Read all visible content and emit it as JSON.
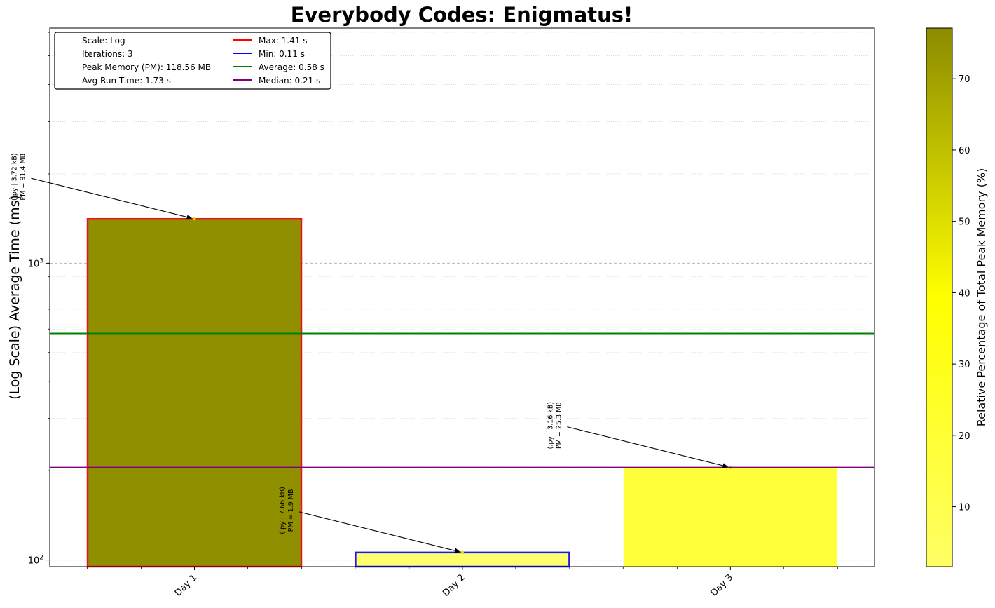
{
  "chart_data": {
    "type": "bar",
    "title": "Everybody Codes: Enigmatus!",
    "xlabel": "",
    "ylabel": "(Log Scale) Average Time (ms)",
    "yscale": "log",
    "ylim": [
      95,
      6200
    ],
    "grid": true,
    "categories": [
      "Day 1",
      "Day 2",
      "Day 3"
    ],
    "values": [
      1410,
      106,
      205
    ],
    "bar_colors": [
      "#8f8f00",
      "#ffff6e",
      "#ffff3a"
    ],
    "bar_edge_colors": [
      "#e8141e",
      "#1a1aee",
      null
    ],
    "annotations": [
      {
        "line1": "(.py | 3.72 kB)",
        "line2": "PM = 91.4 MB"
      },
      {
        "line1": "(.py | 7.66 kB)",
        "line2": "PM = 1.9 MB"
      },
      {
        "line1": "(.py | 3.16 kB)",
        "line2": "PM = 25.3 MB"
      }
    ],
    "y_ticks": [
      {
        "value": 100,
        "base": "10",
        "exp": "2"
      },
      {
        "value": 1000,
        "base": "10",
        "exp": "3"
      }
    ],
    "reference_lines": [
      {
        "name": "Average",
        "value": 580,
        "color": "#008000"
      },
      {
        "name": "Median",
        "value": 205,
        "color": "#800080"
      }
    ],
    "legend": {
      "placement": "top-left",
      "info": [
        "Scale: Log",
        "Iterations: 3",
        "Peak Memory (PM): 118.56 MB",
        "Avg Run Time: 1.73 s"
      ],
      "lines": [
        {
          "label": "Max: 1.41 s",
          "color": "#ff0000"
        },
        {
          "label": "Min: 0.11 s",
          "color": "#0000ff"
        },
        {
          "label": "Average: 0.58 s",
          "color": "#008000"
        },
        {
          "label": "Median: 0.21 s",
          "color": "#800080"
        }
      ]
    },
    "colorbar": {
      "label": "Relative Percentage of Total Peak Memory (%)",
      "min": 1.6,
      "max": 77.1,
      "ticks": [
        10,
        20,
        30,
        40,
        50,
        60,
        70
      ],
      "colors": [
        "#ffff66",
        "#ffff00",
        "#8b8b00"
      ]
    }
  }
}
